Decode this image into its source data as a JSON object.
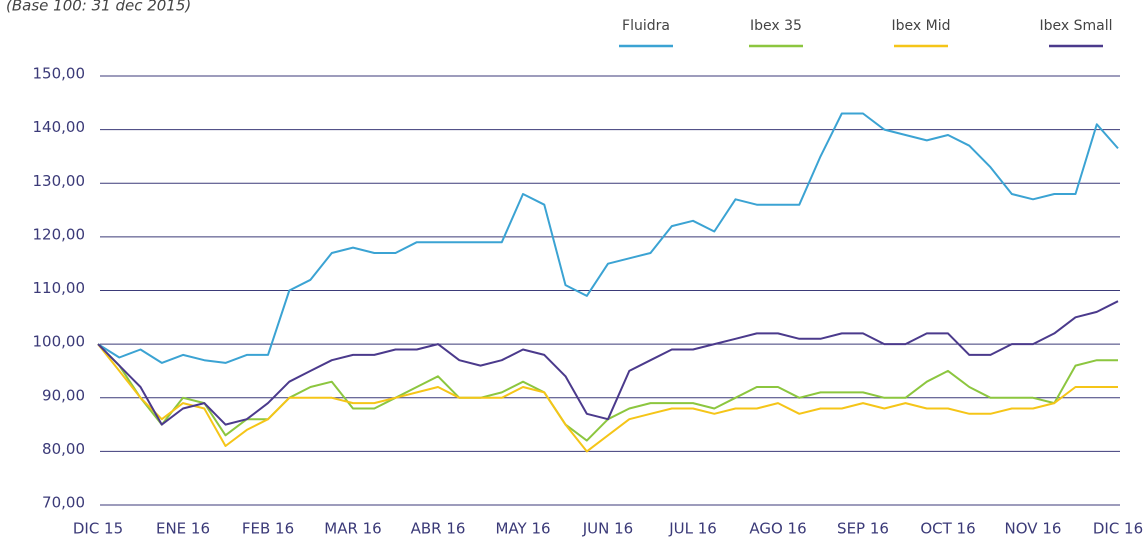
{
  "chart_data": {
    "type": "line",
    "subtitle": "(Base 100: 31 dec 2015)",
    "categories": [
      "DIC 15",
      null,
      null,
      null,
      "ENE 16",
      null,
      null,
      null,
      "FEB 16",
      null,
      null,
      null,
      "MAR 16",
      null,
      null,
      null,
      "ABR 16",
      null,
      null,
      null,
      "MAY 16",
      null,
      null,
      null,
      "JUN 16",
      null,
      null,
      null,
      "JUL 16",
      null,
      null,
      null,
      "AGO 16",
      null,
      null,
      null,
      "SEP 16",
      null,
      null,
      null,
      "OCT 16",
      null,
      null,
      null,
      "NOV 16",
      null,
      null,
      null,
      "DIC 16"
    ],
    "series": [
      {
        "name": "Fluidra",
        "color": "#3ba3d3",
        "values": [
          100,
          97.5,
          99,
          96.5,
          98,
          97,
          96.5,
          98,
          98,
          110,
          112,
          117,
          118,
          117,
          117,
          119,
          119,
          119,
          119,
          119,
          128,
          126,
          111,
          109,
          115,
          116,
          117,
          122,
          123,
          121,
          127,
          126,
          126,
          126,
          135,
          143,
          143,
          140,
          139,
          138,
          139,
          137,
          133,
          128,
          127,
          128,
          128,
          141,
          136.5
        ]
      },
      {
        "name": "Ibex 35",
        "color": "#8cc63f",
        "values": [
          100,
          96,
          90,
          85,
          90,
          89,
          83,
          86,
          86,
          90,
          92,
          93,
          88,
          88,
          90,
          92,
          94,
          90,
          90,
          91,
          93,
          91,
          85,
          82,
          86,
          88,
          89,
          89,
          89,
          88,
          90,
          92,
          92,
          90,
          91,
          91,
          91,
          90,
          90,
          93,
          95,
          92,
          90,
          90,
          90,
          89,
          96,
          97,
          97
        ]
      },
      {
        "name": "Ibex Mid",
        "color": "#f5c518",
        "values": [
          100,
          95,
          90,
          86,
          89,
          88,
          81,
          84,
          86,
          90,
          90,
          90,
          89,
          89,
          90,
          91,
          92,
          90,
          90,
          90,
          92,
          91,
          85,
          80,
          83,
          86,
          87,
          88,
          88,
          87,
          88,
          88,
          89,
          87,
          88,
          88,
          89,
          88,
          89,
          88,
          88,
          87,
          87,
          88,
          88,
          89,
          92,
          92,
          92
        ]
      },
      {
        "name": "Ibex Small",
        "color": "#4b3a8c",
        "values": [
          100,
          96,
          92,
          85,
          88,
          89,
          85,
          86,
          89,
          93,
          95,
          97,
          98,
          98,
          99,
          99,
          100,
          97,
          96,
          97,
          99,
          98,
          94,
          87,
          86,
          95,
          97,
          99,
          99,
          100,
          101,
          102,
          102,
          101,
          101,
          102,
          102,
          100,
          100,
          102,
          102,
          98,
          98,
          100,
          100,
          102,
          105,
          106,
          108
        ]
      }
    ],
    "ylim": [
      70,
      150
    ],
    "yticks": [
      {
        "value": 70,
        "label": "70,00"
      },
      {
        "value": 80,
        "label": "80,00"
      },
      {
        "value": 90,
        "label": "90,00"
      },
      {
        "value": 100,
        "label": "100,00"
      },
      {
        "value": 110,
        "label": "110,00"
      },
      {
        "value": 120,
        "label": "120,00"
      },
      {
        "value": 130,
        "label": "130,00"
      },
      {
        "value": 140,
        "label": "140,00"
      },
      {
        "value": 150,
        "label": "150,00"
      }
    ],
    "grid": true,
    "legend": "top-right"
  }
}
